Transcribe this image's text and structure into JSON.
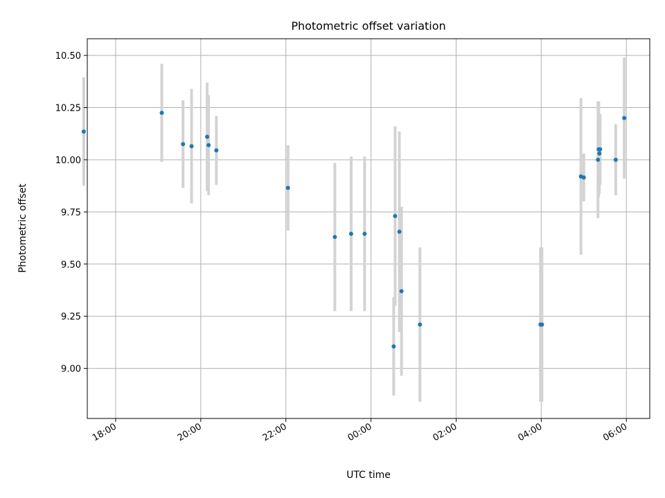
{
  "chart_data": {
    "type": "scatter",
    "title": "Photometric offset variation",
    "xlabel": "UTC time",
    "ylabel": "Photometric offset",
    "x_is_time": true,
    "x_tick_labels": [
      "18:00",
      "20:00",
      "22:00",
      "00:00",
      "02:00",
      "04:00",
      "06:00"
    ],
    "y_ticks": [
      9.0,
      9.25,
      9.5,
      9.75,
      10.0,
      10.25,
      10.5
    ],
    "y_tick_labels": [
      "9.00",
      "9.25",
      "9.50",
      "9.75",
      "10.00",
      "10.25",
      "10.50"
    ],
    "xlim": [
      "17:20",
      "06:33"
    ],
    "ylim": [
      8.76,
      10.58
    ],
    "grid": true,
    "marker_color": "#1f77b4",
    "errorbar_color": "#d3d3d3",
    "points": [
      {
        "x": "17:15",
        "y": 10.135,
        "err": 0.26
      },
      {
        "x": "19:05",
        "y": 10.225,
        "err": 0.235
      },
      {
        "x": "19:35",
        "y": 10.075,
        "err": 0.21
      },
      {
        "x": "19:47",
        "y": 10.065,
        "err": 0.275
      },
      {
        "x": "20:09",
        "y": 10.11,
        "err": 0.26
      },
      {
        "x": "20:11",
        "y": 10.07,
        "err": 0.24
      },
      {
        "x": "20:22",
        "y": 10.045,
        "err": 0.165
      },
      {
        "x": "22:03",
        "y": 9.865,
        "err": 0.205
      },
      {
        "x": "23:09",
        "y": 9.63,
        "err": 0.355
      },
      {
        "x": "23:32",
        "y": 9.645,
        "err": 0.37
      },
      {
        "x": "23:51",
        "y": 9.645,
        "err": 0.37
      },
      {
        "x": "00:32",
        "y": 9.105,
        "err": 0.235
      },
      {
        "x": "00:34",
        "y": 9.73,
        "err": 0.43
      },
      {
        "x": "00:40",
        "y": 9.655,
        "err": 0.48
      },
      {
        "x": "00:43",
        "y": 9.37,
        "err": 0.405
      },
      {
        "x": "01:09",
        "y": 9.21,
        "err": 0.37
      },
      {
        "x": "03:59",
        "y": 9.21,
        "err": 0.37
      },
      {
        "x": "04:01",
        "y": 9.21,
        "err": 0.37
      },
      {
        "x": "04:56",
        "y": 9.92,
        "err": 0.375
      },
      {
        "x": "05:00",
        "y": 9.915,
        "err": 0.115
      },
      {
        "x": "05:20",
        "y": 10.0,
        "err": 0.28
      },
      {
        "x": "05:21",
        "y": 10.05,
        "err": 0.23
      },
      {
        "x": "05:22",
        "y": 10.03,
        "err": 0.19
      },
      {
        "x": "05:23",
        "y": 10.05,
        "err": 0.17
      },
      {
        "x": "05:45",
        "y": 10.0,
        "err": 0.17
      },
      {
        "x": "05:57",
        "y": 10.2,
        "err": 0.29
      }
    ]
  }
}
